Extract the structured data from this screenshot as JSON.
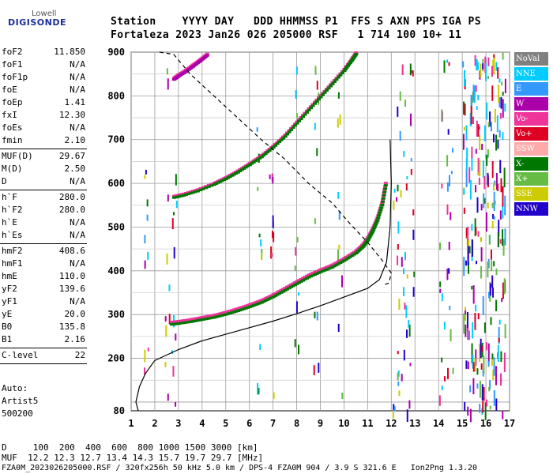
{
  "logo": {
    "top": "Lowell",
    "bottom": "DIGISONDE"
  },
  "header": {
    "line1": "Station    YYYY DAY   DDD HHMMSS P1  FFS S AXN PPS IGA PS",
    "line2": "Fortaleza 2023 Jan26 026 205000 RSF   1 714 100 10+ 11"
  },
  "params": [
    {
      "label": "foF2",
      "value": "11.850"
    },
    {
      "label": "foF1",
      "value": "N/A"
    },
    {
      "label": "foF1p",
      "value": "N/A"
    },
    {
      "label": "foE",
      "value": "N/A"
    },
    {
      "label": "foEp",
      "value": "1.41"
    },
    {
      "label": "fxI",
      "value": "12.30"
    },
    {
      "label": "foEs",
      "value": "N/A"
    },
    {
      "label": "fmin",
      "value": "2.10"
    },
    {
      "label": "MUF(D)",
      "value": "29.67"
    },
    {
      "label": "M(D)",
      "value": "2.50"
    },
    {
      "label": "D",
      "value": "N/A"
    },
    {
      "label": "h`F",
      "value": "280.0"
    },
    {
      "label": "h`F2",
      "value": "280.0"
    },
    {
      "label": "h`E",
      "value": "N/A"
    },
    {
      "label": "h`Es",
      "value": "N/A"
    },
    {
      "label": "hmF2",
      "value": "408.6"
    },
    {
      "label": "hmF1",
      "value": "N/A"
    },
    {
      "label": "hmE",
      "value": "110.0"
    },
    {
      "label": "yF2",
      "value": "139.6"
    },
    {
      "label": "yF1",
      "value": "N/A"
    },
    {
      "label": "yE",
      "value": "20.0"
    },
    {
      "label": "B0",
      "value": "135.8"
    },
    {
      "label": "B1",
      "value": "2.16"
    },
    {
      "label": "C-level",
      "value": "22"
    }
  ],
  "auto": {
    "line1": "Auto:",
    "line2": "Artist5",
    "line3": "500200"
  },
  "legend": [
    {
      "label": "NoVal",
      "color": "#808080"
    },
    {
      "label": "NNE",
      "color": "#00ccff"
    },
    {
      "label": "E",
      "color": "#3399ff"
    },
    {
      "label": "W",
      "color": "#aa00aa"
    },
    {
      "label": "Vo-",
      "color": "#ee3399"
    },
    {
      "label": "Vo+",
      "color": "#dd0022"
    },
    {
      "label": "SSW",
      "color": "#ffaaaa"
    },
    {
      "label": "X-",
      "color": "#007700"
    },
    {
      "label": "X+",
      "color": "#66bb44"
    },
    {
      "label": "SSE",
      "color": "#cccc00"
    },
    {
      "label": "NNW",
      "color": "#2200cc"
    }
  ],
  "footer": {
    "line1": "D     100  200  400  600  800 1000 1500 3000 [km]",
    "line2": "MUF  12.2 12.3 12.7 13.4 14.3 15.7 19.7 29.7 [MHz]",
    "line3": "FZA0M_2023026205000.RSF / 320fx256h 50 kHz 5.0 km / DPS-4 FZA0M 904 / 3.9 S 321.6 E   Ion2Png 1.3.20"
  },
  "chart_data": {
    "type": "scatter",
    "xlim": [
      1,
      17
    ],
    "ylim": [
      80,
      900
    ],
    "xticks": [
      1,
      2,
      3,
      4,
      5,
      6,
      7,
      8,
      9,
      10,
      11,
      12,
      13,
      14,
      15,
      16,
      17
    ],
    "yticks": [
      80,
      200,
      300,
      400,
      500,
      600,
      700,
      800,
      900
    ],
    "grid": true,
    "ordinary_trace": [
      [
        2.7,
        282
      ],
      [
        3.0,
        284
      ],
      [
        3.5,
        288
      ],
      [
        4.0,
        293
      ],
      [
        4.5,
        298
      ],
      [
        5.0,
        305
      ],
      [
        5.5,
        313
      ],
      [
        6.0,
        322
      ],
      [
        6.5,
        332
      ],
      [
        7.0,
        345
      ],
      [
        7.5,
        360
      ],
      [
        8.0,
        375
      ],
      [
        8.5,
        390
      ],
      [
        9.0,
        402
      ],
      [
        9.5,
        413
      ],
      [
        10.0,
        428
      ],
      [
        10.5,
        445
      ],
      [
        10.8,
        460
      ],
      [
        11.0,
        475
      ],
      [
        11.2,
        495
      ],
      [
        11.4,
        520
      ],
      [
        11.6,
        555
      ],
      [
        11.75,
        600
      ]
    ],
    "second_hop_trace": [
      [
        2.8,
        570
      ],
      [
        3.2,
        575
      ],
      [
        3.8,
        585
      ],
      [
        4.5,
        600
      ],
      [
        5.0,
        613
      ],
      [
        5.5,
        628
      ],
      [
        6.0,
        645
      ],
      [
        6.5,
        663
      ],
      [
        7.0,
        685
      ],
      [
        7.5,
        710
      ],
      [
        8.0,
        740
      ],
      [
        8.5,
        770
      ],
      [
        9.0,
        800
      ],
      [
        9.5,
        830
      ],
      [
        10.0,
        860
      ],
      [
        10.3,
        882
      ],
      [
        10.5,
        898
      ]
    ],
    "third_hop_trace": [
      [
        2.8,
        840
      ],
      [
        3.0,
        848
      ],
      [
        3.3,
        858
      ],
      [
        3.6,
        870
      ],
      [
        3.9,
        882
      ],
      [
        4.2,
        895
      ]
    ],
    "true_height_profile": [
      [
        1.3,
        80
      ],
      [
        1.2,
        100
      ],
      [
        1.35,
        135
      ],
      [
        1.6,
        165
      ],
      [
        2.0,
        195
      ],
      [
        3.0,
        220
      ],
      [
        4.0,
        240
      ],
      [
        5.0,
        255
      ],
      [
        6.0,
        270
      ],
      [
        7.0,
        285
      ],
      [
        8.0,
        302
      ],
      [
        9.0,
        320
      ],
      [
        10.0,
        340
      ],
      [
        11.0,
        360
      ],
      [
        11.5,
        380
      ],
      [
        11.8,
        420
      ],
      [
        11.95,
        500
      ],
      [
        12.0,
        600
      ],
      [
        11.95,
        700
      ]
    ],
    "model_profile": [
      [
        2.2,
        900
      ],
      [
        2.8,
        895
      ],
      [
        3.5,
        850
      ],
      [
        4.5,
        800
      ],
      [
        5.5,
        750
      ],
      [
        6.5,
        700
      ],
      [
        7.5,
        655
      ],
      [
        8.5,
        600
      ],
      [
        9.5,
        555
      ],
      [
        10.3,
        505
      ],
      [
        11.0,
        465
      ],
      [
        11.6,
        425
      ],
      [
        12.0,
        395
      ],
      [
        11.9,
        372
      ],
      [
        11.7,
        368
      ]
    ],
    "noise_columns": [
      1.6,
      2.5,
      2.8,
      6.4,
      6.9,
      8.0,
      8.8,
      9.8,
      12.15,
      12.3,
      12.5,
      12.7,
      12.85,
      14.1,
      14.3,
      14.5,
      15.1,
      15.3,
      15.5,
      15.7,
      15.9,
      16.1,
      16.3,
      16.5,
      16.7
    ]
  }
}
